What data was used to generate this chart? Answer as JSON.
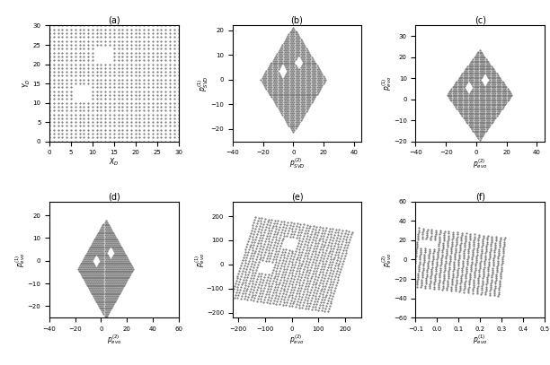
{
  "title_a": "(a)",
  "title_b": "(b)",
  "title_c": "(c)",
  "title_d": "(d)",
  "title_e": "(e)",
  "title_f": "(f)",
  "fig_background": "#ffffff",
  "dot_color": "#777777",
  "dot_size": 1.2,
  "dot_marker": ".",
  "ylim_b": [
    -25,
    22
  ],
  "xlim_b": [
    -40,
    45
  ],
  "ylim_c": [
    -20,
    35
  ],
  "xlim_c": [
    -40,
    45
  ],
  "ylim_d": [
    -25,
    26
  ],
  "xlim_d": [
    -40,
    60
  ],
  "ylim_e": [
    -220,
    260
  ],
  "xlim_e": [
    -220,
    260
  ],
  "ylim_f": [
    -60,
    60
  ],
  "xlim_f": [
    -0.1,
    0.5
  ]
}
